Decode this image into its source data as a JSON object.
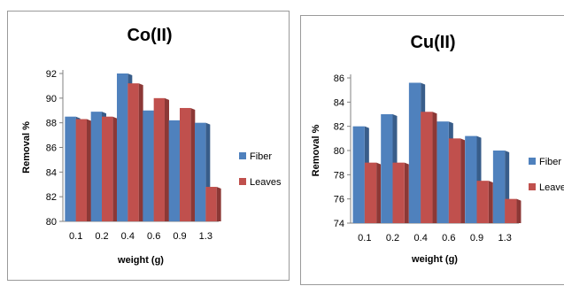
{
  "chart_data": [
    {
      "type": "bar",
      "title": "Co(II)",
      "xlabel": "weight (g)",
      "ylabel": "Removal %",
      "categories": [
        "0.1",
        "0.2",
        "0.4",
        "0.6",
        "0.9",
        "1.3"
      ],
      "series": [
        {
          "name": "Fiber",
          "values": [
            88.5,
            88.9,
            92.0,
            89.0,
            88.2,
            88.0
          ]
        },
        {
          "name": "Leaves",
          "values": [
            88.3,
            88.5,
            91.2,
            90.0,
            89.2,
            82.8
          ]
        }
      ],
      "ylim": [
        80,
        92
      ],
      "yticks": [
        "80",
        "82",
        "84",
        "86",
        "88",
        "90",
        "92"
      ],
      "grid": false,
      "legend": "right"
    },
    {
      "type": "bar",
      "title": "Cu(II)",
      "xlabel": "weight (g)",
      "ylabel": "Removal %",
      "categories": [
        "0.1",
        "0.2",
        "0.4",
        "0.6",
        "0.9",
        "1.3"
      ],
      "series": [
        {
          "name": "Fiber",
          "values": [
            82.0,
            83.0,
            85.6,
            82.4,
            81.2,
            80.0
          ]
        },
        {
          "name": "Leaves",
          "values": [
            79.0,
            79.0,
            83.2,
            81.0,
            77.5,
            76.0
          ]
        }
      ],
      "ylim": [
        74,
        86
      ],
      "yticks": [
        "74",
        "76",
        "78",
        "80",
        "82",
        "84",
        "86"
      ],
      "grid": false,
      "legend": "right"
    }
  ],
  "colors": {
    "fiber": "#4f81bd",
    "fiber_side": "#385d8a",
    "leaves": "#c0504d",
    "leaves_side": "#8c3836"
  }
}
